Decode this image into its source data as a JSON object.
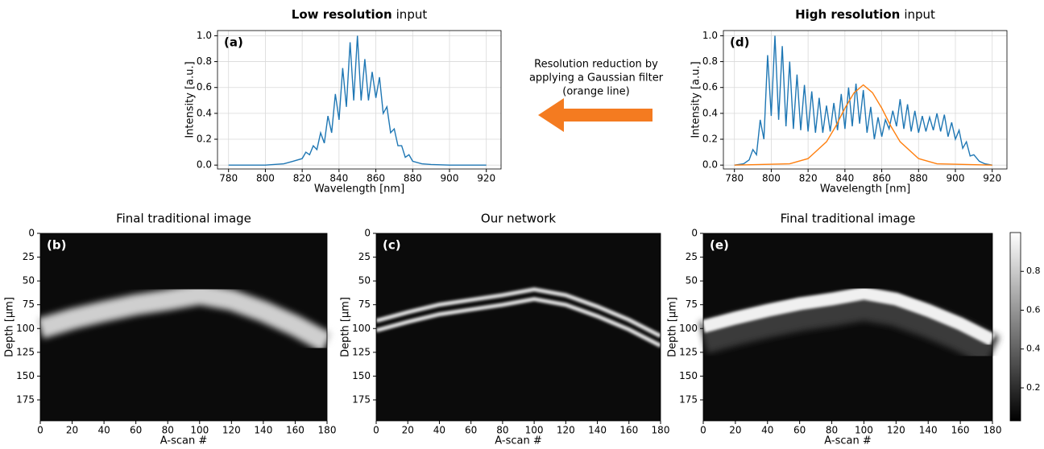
{
  "chart_data": [
    {
      "type": "line",
      "title_bold": "Low resolution",
      "title": "input",
      "panel_label": "(a)",
      "xlabel": "Wavelength [nm]",
      "ylabel": "Intensity [a.u.]",
      "grid": true,
      "xlim": [
        774,
        928
      ],
      "ylim": [
        -0.03,
        1.04
      ],
      "xticks": [
        780,
        800,
        820,
        840,
        860,
        880,
        900,
        920
      ],
      "yticks": [
        {
          "value": 0,
          "label": "0.0"
        },
        0.2,
        0.4,
        0.6,
        0.8,
        {
          "value": 1,
          "label": "1.0"
        }
      ],
      "series": [
        {
          "color": "#1f77b4",
          "x": [
            780,
            800,
            810,
            815,
            820,
            822,
            824,
            826,
            828,
            830,
            832,
            834,
            836,
            838,
            840,
            842,
            844,
            846,
            848,
            850,
            852,
            854,
            856,
            858,
            860,
            862,
            864,
            866,
            868,
            870,
            872,
            874,
            876,
            878,
            880,
            885,
            890,
            900,
            920
          ],
          "values": [
            0,
            0,
            0.01,
            0.03,
            0.05,
            0.1,
            0.08,
            0.15,
            0.12,
            0.25,
            0.17,
            0.38,
            0.25,
            0.55,
            0.35,
            0.75,
            0.45,
            0.95,
            0.5,
            1.0,
            0.5,
            0.82,
            0.5,
            0.72,
            0.52,
            0.68,
            0.4,
            0.45,
            0.25,
            0.28,
            0.15,
            0.15,
            0.06,
            0.08,
            0.03,
            0.01,
            0.005,
            0,
            0
          ]
        }
      ]
    },
    {
      "type": "line",
      "title_bold": "High resolution",
      "title": "input",
      "panel_label": "(d)",
      "xlabel": "Wavelength [nm]",
      "ylabel": "Intensity [a.u.]",
      "grid": true,
      "xlim": [
        774,
        928
      ],
      "ylim": [
        -0.03,
        1.04
      ],
      "xticks": [
        780,
        800,
        820,
        840,
        860,
        880,
        900,
        920
      ],
      "yticks": [
        {
          "value": 0,
          "label": "0.0"
        },
        0.2,
        0.4,
        0.6,
        0.8,
        {
          "value": 1,
          "label": "1.0"
        }
      ],
      "series": [
        {
          "color": "#1f77b4",
          "x": [
            780,
            785,
            788,
            790,
            792,
            794,
            796,
            798,
            800,
            802,
            804,
            806,
            808,
            810,
            812,
            814,
            816,
            818,
            820,
            822,
            824,
            826,
            828,
            830,
            832,
            834,
            836,
            838,
            840,
            842,
            844,
            846,
            848,
            850,
            852,
            854,
            856,
            858,
            860,
            862,
            864,
            866,
            868,
            870,
            872,
            874,
            876,
            878,
            880,
            882,
            884,
            886,
            888,
            890,
            892,
            894,
            896,
            898,
            900,
            902,
            904,
            906,
            908,
            910,
            913,
            916,
            920
          ],
          "values": [
            0,
            0.01,
            0.04,
            0.12,
            0.08,
            0.35,
            0.2,
            0.85,
            0.38,
            1.0,
            0.35,
            0.92,
            0.3,
            0.8,
            0.28,
            0.7,
            0.27,
            0.62,
            0.26,
            0.57,
            0.25,
            0.52,
            0.25,
            0.46,
            0.26,
            0.48,
            0.27,
            0.55,
            0.28,
            0.6,
            0.3,
            0.63,
            0.32,
            0.58,
            0.25,
            0.45,
            0.2,
            0.37,
            0.22,
            0.35,
            0.28,
            0.42,
            0.3,
            0.51,
            0.28,
            0.47,
            0.26,
            0.42,
            0.25,
            0.38,
            0.26,
            0.37,
            0.27,
            0.4,
            0.26,
            0.39,
            0.22,
            0.33,
            0.2,
            0.27,
            0.13,
            0.18,
            0.07,
            0.08,
            0.03,
            0.01,
            0
          ]
        },
        {
          "color": "#ff7f0e",
          "x": [
            780,
            810,
            820,
            830,
            835,
            840,
            845,
            850,
            855,
            860,
            865,
            870,
            880,
            890,
            920
          ],
          "values": [
            0,
            0.01,
            0.05,
            0.18,
            0.3,
            0.44,
            0.56,
            0.62,
            0.56,
            0.44,
            0.3,
            0.18,
            0.05,
            0.01,
            0
          ]
        }
      ]
    },
    {
      "type": "heatmap",
      "title": "Final traditional image",
      "panel_label": "(b)",
      "xlabel": "A-scan #",
      "ylabel": "Depth [μm]",
      "xlim": [
        0,
        180
      ],
      "ylim": [
        0,
        197
      ],
      "invert_y": true,
      "xticks": [
        0,
        20,
        40,
        60,
        80,
        100,
        120,
        140,
        160,
        180
      ],
      "yticks": [
        0,
        25,
        50,
        75,
        100,
        125,
        150,
        175
      ],
      "x": [
        0,
        20,
        40,
        60,
        80,
        100,
        120,
        140,
        160,
        180
      ],
      "values": [
        100,
        90,
        82,
        75,
        70,
        64,
        70,
        82,
        97,
        115
      ]
    },
    {
      "type": "heatmap",
      "title": "Our network",
      "panel_label": "(c)",
      "xlabel": "A-scan #",
      "ylabel": "Depth [μm]",
      "xlim": [
        0,
        180
      ],
      "ylim": [
        0,
        197
      ],
      "invert_y": true,
      "xticks": [
        0,
        20,
        40,
        60,
        80,
        100,
        120,
        140,
        160,
        180
      ],
      "yticks": [
        0,
        25,
        50,
        75,
        100,
        125,
        150,
        175
      ],
      "x": [
        0,
        20,
        40,
        60,
        80,
        100,
        120,
        140,
        160,
        180
      ],
      "values": [
        97,
        88,
        80,
        75,
        70,
        64,
        70,
        82,
        96,
        113
      ]
    },
    {
      "type": "heatmap",
      "title": "Final traditional image",
      "panel_label": "(e)",
      "xlabel": "A-scan #",
      "ylabel": "Depth [μm]",
      "xlim": [
        0,
        180
      ],
      "ylim": [
        0,
        197
      ],
      "invert_y": true,
      "xticks": [
        0,
        20,
        40,
        60,
        80,
        100,
        120,
        140,
        160,
        180
      ],
      "yticks": [
        0,
        25,
        50,
        75,
        100,
        125,
        150,
        175
      ],
      "x": [
        0,
        20,
        40,
        60,
        80,
        100,
        120,
        140,
        160,
        180
      ],
      "values": [
        98,
        89,
        81,
        74,
        69,
        63,
        69,
        81,
        95,
        112
      ]
    },
    {
      "type": "colorbar",
      "ylim": [
        0.03,
        1.0
      ],
      "yticks": [
        0.2,
        0.4,
        0.6,
        0.8
      ]
    }
  ],
  "annotation": [
    "Resolution reduction by",
    "applying a Gaussian filter",
    "(orange line)"
  ]
}
